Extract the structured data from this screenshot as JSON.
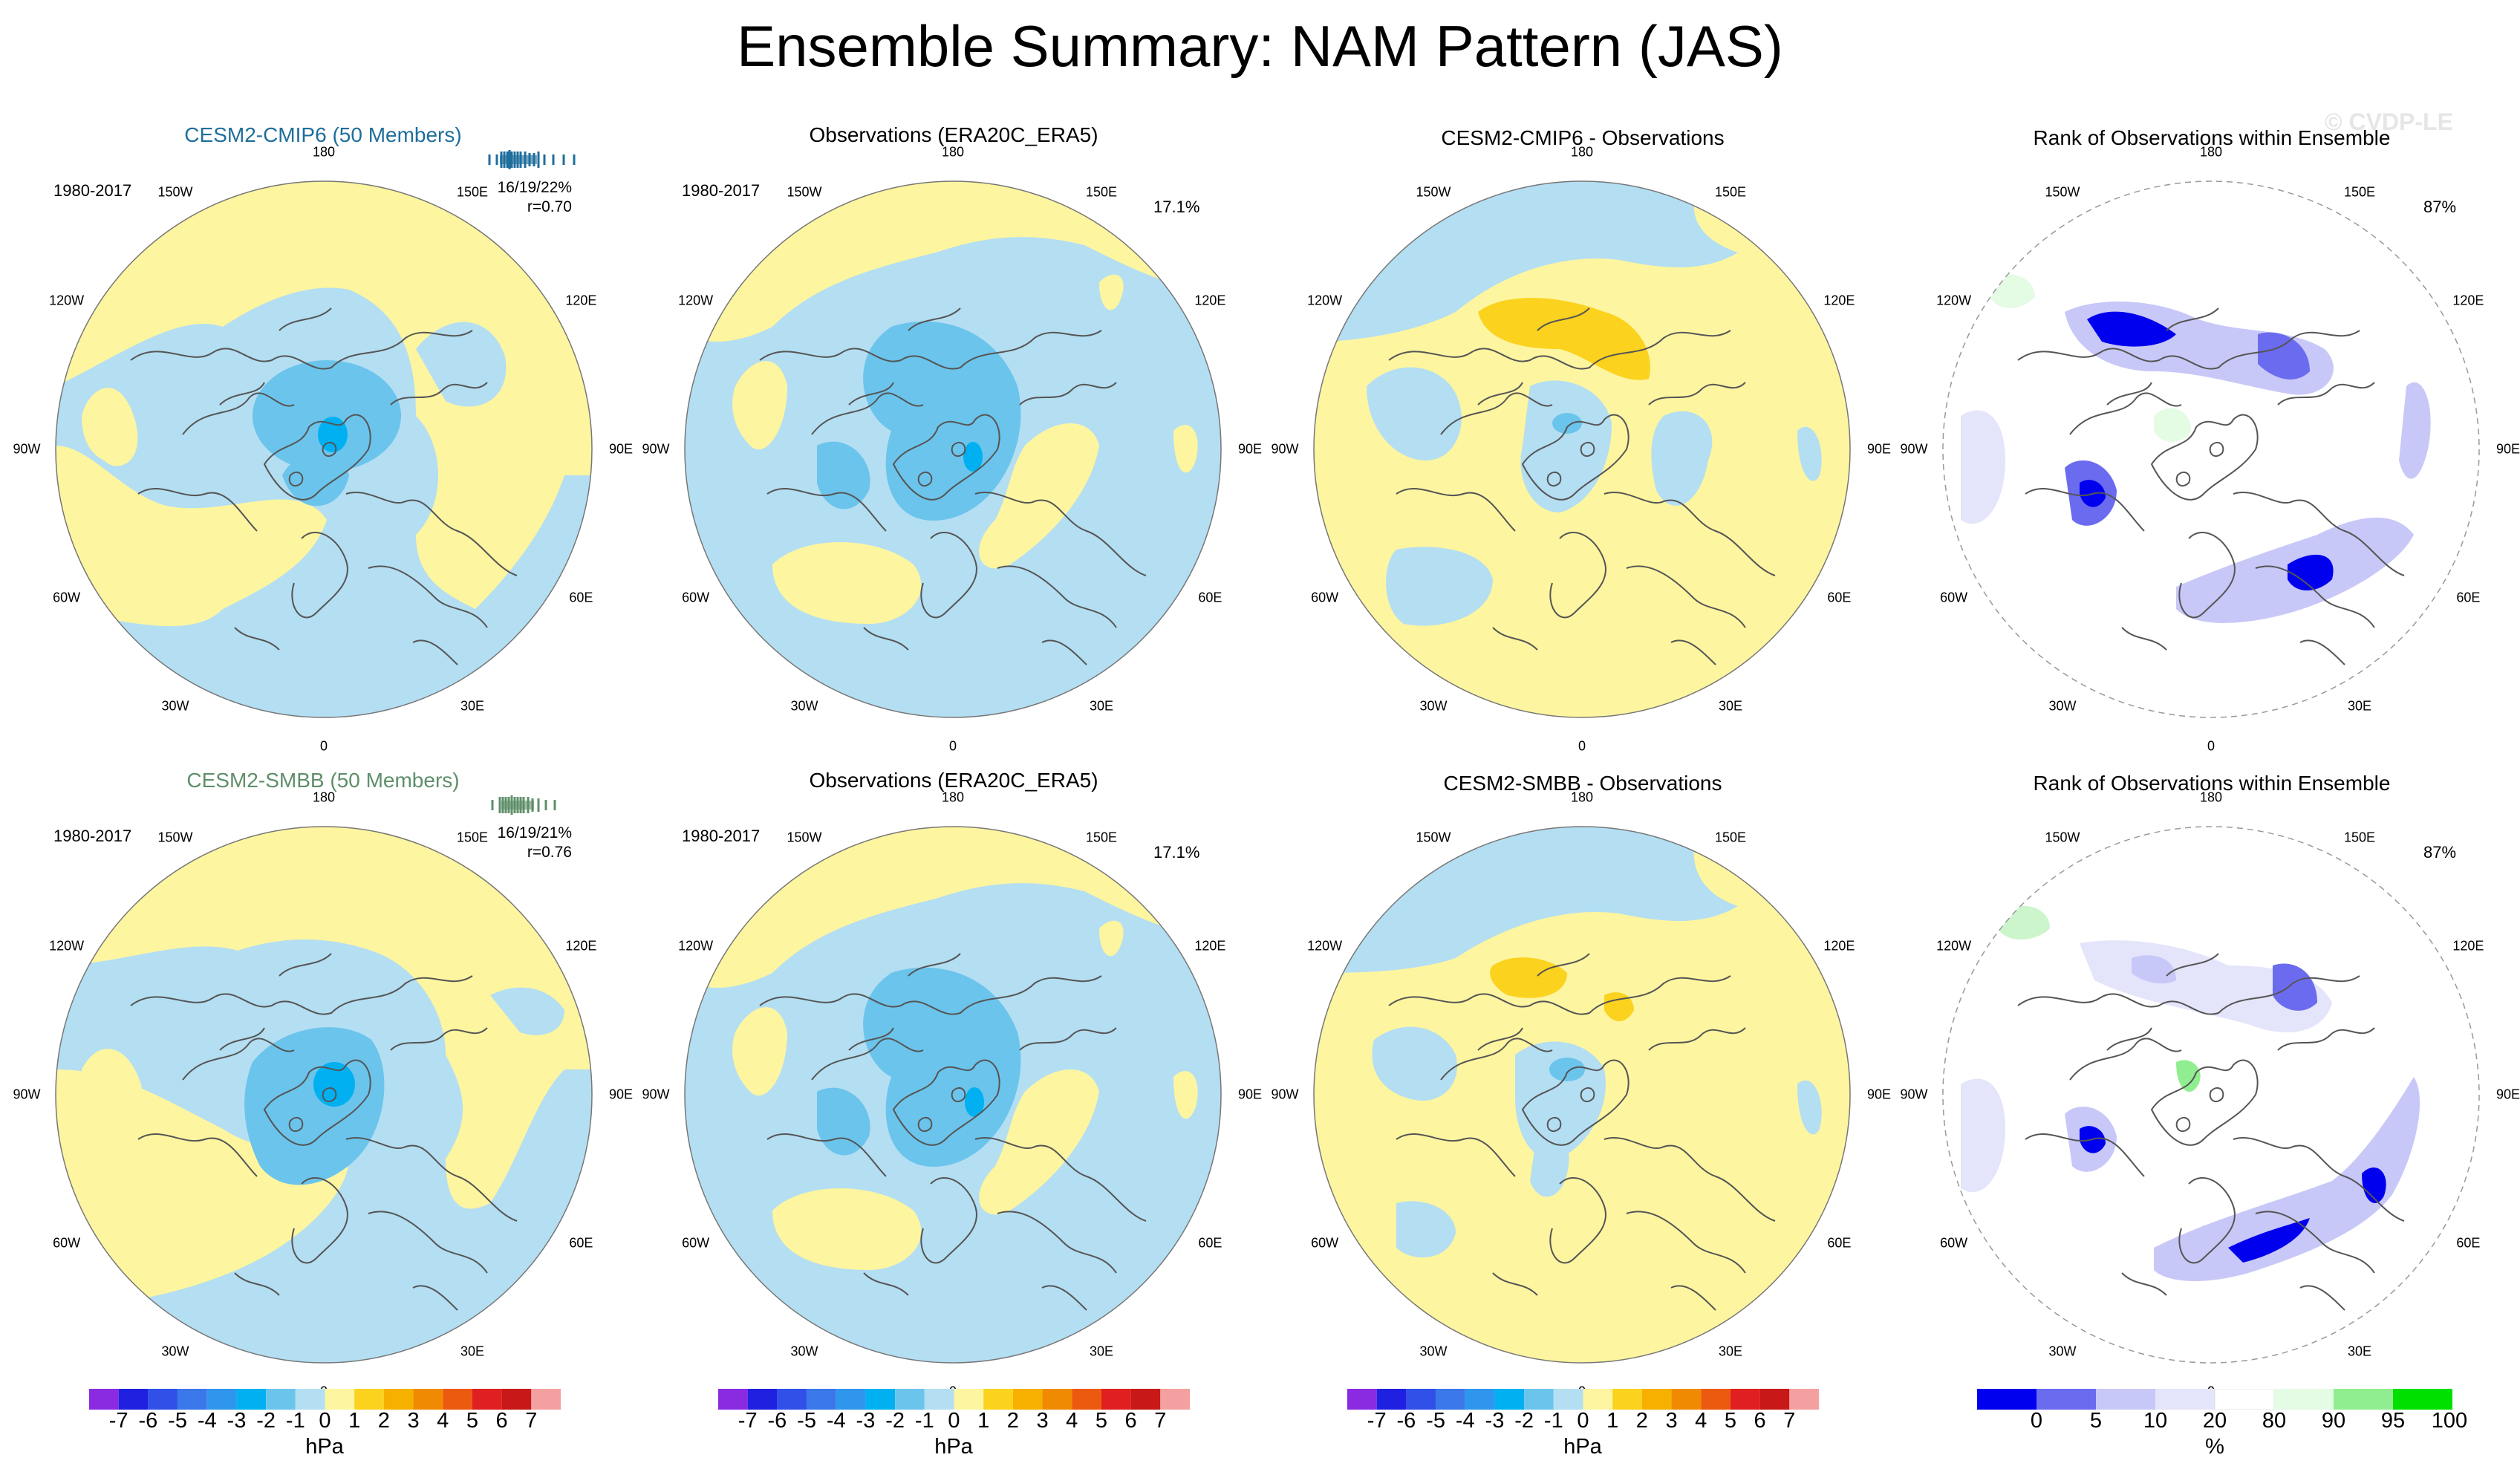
{
  "title": "Ensemble Summary: NAM Pattern (JAS)",
  "watermark": "© CVDP-LE",
  "colors": {
    "blue_light": "#b4def2",
    "blue_mid": "#6bc4ec",
    "blue_dark": "#2aa8e8",
    "blue_core": "#00b0f0",
    "yellow_light": "#fdf5a0",
    "yellow_dark": "#fbd21e",
    "orange": "#f6b100",
    "rank_dark": "#0000ee",
    "rank_mid": "#6b6bf0",
    "rank_light": "#c8c8f8",
    "rank_pale": "#e4e4fb",
    "rank_green": "#ccf5cc",
    "coast": "#555555",
    "cmip6_title": "#1f6e9c",
    "smbb_title": "#5f8f6a"
  },
  "rows": [
    {
      "model_title": "CESM2-CMIP6 (50 Members)",
      "period": "1980-2017",
      "stats_line1": "16/19/22%",
      "stats_line2": "r=0.70",
      "obs_title": "Observations (ERA20C_ERA5)",
      "obs_period": "1980-2017",
      "obs_pct": "17.1%",
      "diff_title": "CESM2-CMIP6 - Observations",
      "rank_title": "Rank of Observations within Ensemble",
      "rank_pct": "87%"
    },
    {
      "model_title": "CESM2-SMBB (50 Members)",
      "period": "1980-2017",
      "stats_line1": "16/19/21%",
      "stats_line2": "r=0.76",
      "obs_title": "Observations (ERA20C_ERA5)",
      "obs_period": "1980-2017",
      "obs_pct": "17.1%",
      "diff_title": "CESM2-SMBB - Observations",
      "rank_title": "Rank of Observations within Ensemble",
      "rank_pct": "87%"
    }
  ],
  "longitude_labels": [
    "180",
    "150E",
    "120E",
    "90E",
    "60E",
    "30E",
    "0",
    "30W",
    "60W",
    "90W",
    "120W",
    "150W"
  ],
  "colorbar_hpa": {
    "labels": [
      "-7",
      "-6",
      "-5",
      "-4",
      "-3",
      "-2",
      "-1",
      "0",
      "1",
      "2",
      "3",
      "4",
      "5",
      "6",
      "7"
    ],
    "unit": "hPa",
    "colors": [
      "#8a2be2",
      "#2020e0",
      "#3050e8",
      "#3a78ea",
      "#2f96ee",
      "#00b0f0",
      "#6bc4ec",
      "#b4def2",
      "#fdf5a0",
      "#fbd21e",
      "#f6b100",
      "#f08a00",
      "#ec5a10",
      "#e02020",
      "#c81818",
      "#f5a0a0"
    ]
  },
  "colorbar_rank": {
    "labels": [
      "0",
      "5",
      "10",
      "20",
      "80",
      "90",
      "95",
      "100"
    ],
    "unit": "%",
    "colors": [
      "#0000ee",
      "#6b6bf0",
      "#c8c8f8",
      "#e4e4fb",
      "#ffffff",
      "#e4fbe4",
      "#90ee90",
      "#00e000"
    ]
  }
}
